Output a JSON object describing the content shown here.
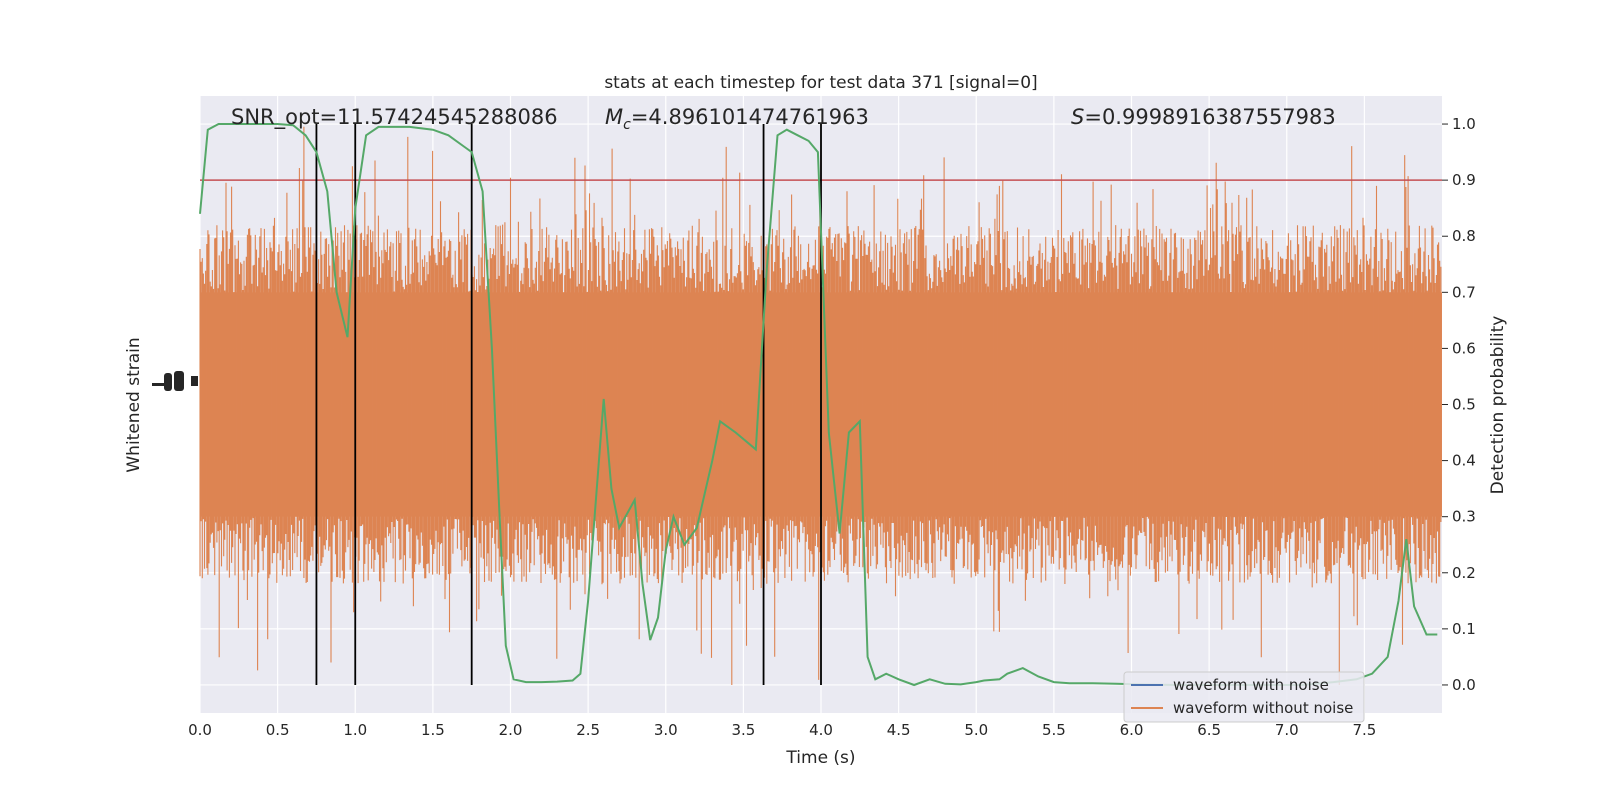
{
  "chart_data": {
    "type": "line",
    "title": "stats at each timestep for test data 371 [signal=0]",
    "annotations": {
      "snr": "SNR_opt=11.57424545288086",
      "mc_symbol": "M",
      "mc_sub": "c",
      "mc_value": "=4.896101474761963",
      "s_symbol": "S",
      "s_value": "=0.9998916387557983"
    },
    "xlabel": "Time (s)",
    "ylabel_left": "Whitened strain",
    "ylabel_right": "Detection probability",
    "xlim": [
      0.0,
      8.0
    ],
    "ylim_right": [
      -0.05,
      1.05
    ],
    "x_ticks": [
      "0.0",
      "0.5",
      "1.0",
      "1.5",
      "2.0",
      "2.5",
      "3.0",
      "3.5",
      "4.0",
      "4.5",
      "5.0",
      "5.5",
      "6.0",
      "6.5",
      "7.0",
      "7.5"
    ],
    "y_ticks_right": [
      "0.0",
      "0.1",
      "0.2",
      "0.3",
      "0.4",
      "0.5",
      "0.6",
      "0.7",
      "0.8",
      "0.9",
      "1.0"
    ],
    "threshold": 0.9,
    "vertical_lines": [
      0.75,
      1.0,
      1.75,
      3.63,
      4.0
    ],
    "legend": {
      "placement": "lower-right",
      "entries": [
        "waveform with noise",
        "waveform without noise"
      ]
    },
    "series": [
      {
        "name": "waveform with noise",
        "color": "#4c72b0",
        "values": []
      },
      {
        "name": "waveform without noise",
        "color": "#dd8452",
        "style": "dense noise band",
        "band_core": [
          0.3,
          0.7
        ],
        "spike_range": [
          0.0,
          1.0
        ]
      },
      {
        "name": "detection probability",
        "color": "#55a868",
        "x": [
          0.0,
          0.05,
          0.12,
          0.25,
          0.5,
          0.6,
          0.68,
          0.75,
          0.82,
          0.88,
          0.95,
          1.0,
          1.07,
          1.15,
          1.25,
          1.35,
          1.5,
          1.6,
          1.7,
          1.75,
          1.82,
          1.88,
          1.93,
          1.97,
          2.02,
          2.1,
          2.2,
          2.3,
          2.4,
          2.45,
          2.5,
          2.55,
          2.6,
          2.65,
          2.7,
          2.8,
          2.85,
          2.9,
          2.95,
          3.0,
          3.05,
          3.12,
          3.2,
          3.3,
          3.35,
          3.45,
          3.58,
          3.65,
          3.72,
          3.78,
          3.85,
          3.92,
          3.98,
          4.05,
          4.12,
          4.18,
          4.25,
          4.3,
          4.35,
          4.42,
          4.5,
          4.6,
          4.7,
          4.8,
          4.9,
          5.0,
          5.05,
          5.15,
          5.2,
          5.3,
          5.4,
          5.5,
          5.6,
          5.75,
          5.9,
          6.05,
          6.3,
          6.6,
          6.9,
          7.1,
          7.3,
          7.45,
          7.55,
          7.65,
          7.72,
          7.77,
          7.82,
          7.9,
          7.97
        ],
        "values": [
          0.84,
          0.99,
          1.0,
          1.0,
          1.0,
          0.998,
          0.98,
          0.95,
          0.88,
          0.7,
          0.62,
          0.85,
          0.98,
          0.995,
          0.995,
          0.995,
          0.99,
          0.98,
          0.96,
          0.95,
          0.88,
          0.6,
          0.3,
          0.07,
          0.01,
          0.005,
          0.005,
          0.006,
          0.008,
          0.02,
          0.15,
          0.33,
          0.51,
          0.35,
          0.28,
          0.33,
          0.18,
          0.08,
          0.12,
          0.24,
          0.3,
          0.25,
          0.28,
          0.4,
          0.47,
          0.45,
          0.42,
          0.74,
          0.98,
          0.99,
          0.98,
          0.97,
          0.95,
          0.45,
          0.27,
          0.45,
          0.47,
          0.05,
          0.01,
          0.02,
          0.01,
          0.0,
          0.01,
          0.002,
          0.001,
          0.005,
          0.008,
          0.01,
          0.02,
          0.03,
          0.015,
          0.005,
          0.003,
          0.003,
          0.002,
          0.001,
          0.0,
          0.0,
          0.0,
          0.0,
          0.005,
          0.01,
          0.02,
          0.05,
          0.15,
          0.26,
          0.14,
          0.09,
          0.09
        ]
      }
    ]
  }
}
